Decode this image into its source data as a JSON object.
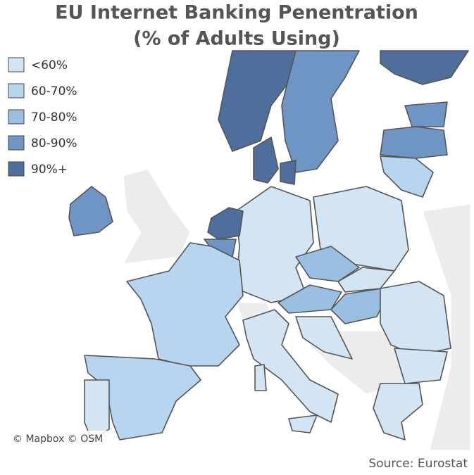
{
  "title": [
    "EU Internet Banking Penentration",
    "(% of Adults Using)"
  ],
  "legend": [
    {
      "label": "<60%",
      "color": "#d3e5f3"
    },
    {
      "label": "60-70%",
      "color": "#b7d5ee"
    },
    {
      "label": "70-80%",
      "color": "#9bbfe0"
    },
    {
      "label": "80-90%",
      "color": "#6f95c4"
    },
    {
      "label": "90%+",
      "color": "#4e6e9b"
    }
  ],
  "attribution": "© Mapbox © OSM",
  "source": "Source: Eurostat"
}
